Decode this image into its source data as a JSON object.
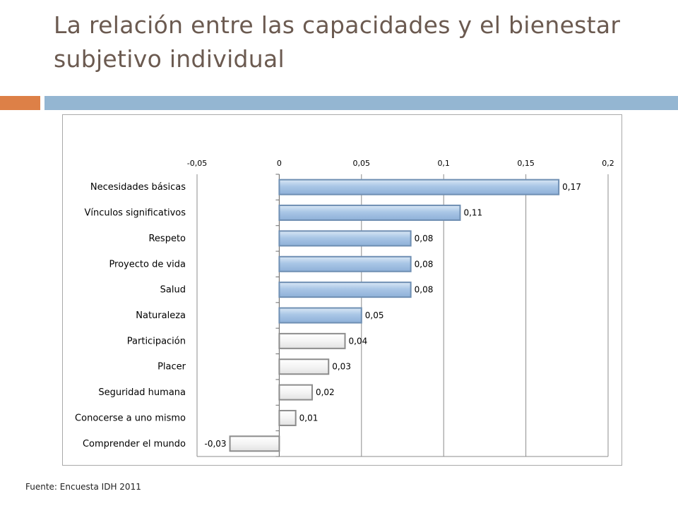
{
  "slide": {
    "title": "La relación entre las capacidades y el bienestar subjetivo individual",
    "source_note": "Fuente: Encuesta IDH 2011",
    "colors": {
      "title": "#6b5a50",
      "accent_orange": "#dd8047",
      "accent_blue": "#94b6d2",
      "bar_blue_fill": "#a9c6e6",
      "bar_blue_edge": "#6f8fb3",
      "bar_white_fill": "#f2f2f2",
      "bar_white_edge": "#8c8c8c"
    }
  },
  "chart_data": {
    "type": "bar",
    "orientation": "horizontal",
    "categories": [
      "Necesidades básicas",
      "Vínculos significativos",
      "Respeto",
      "Proyecto de vida",
      "Salud",
      "Naturaleza",
      "Participación",
      "Placer",
      "Seguridad humana",
      "Conocerse a uno mismo",
      "Comprender el mundo"
    ],
    "values": [
      0.17,
      0.11,
      0.08,
      0.08,
      0.08,
      0.05,
      0.04,
      0.03,
      0.02,
      0.01,
      -0.03
    ],
    "data_labels": [
      "0,17",
      "0,11",
      "0,08",
      "0,08",
      "0,08",
      "0,05",
      "0,04",
      "0,03",
      "0,02",
      "0,01",
      "-0,03"
    ],
    "bar_style": [
      "blue",
      "blue",
      "blue",
      "blue",
      "blue",
      "blue",
      "white",
      "white",
      "white",
      "white",
      "white"
    ],
    "xlim": [
      -0.05,
      0.2
    ],
    "x_ticks": [
      -0.05,
      0,
      0.05,
      0.1,
      0.15,
      0.2
    ],
    "x_tick_labels": [
      "-0,05",
      "0",
      "0,05",
      "0,1",
      "0,15",
      "0,2"
    ],
    "x_axis_position": "top",
    "grid": true,
    "legend": "none"
  }
}
